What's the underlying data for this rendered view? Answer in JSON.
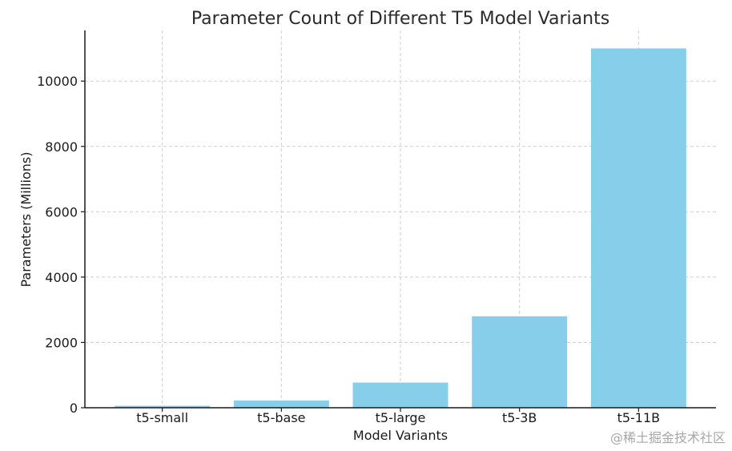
{
  "chart_data": {
    "type": "bar",
    "title": "Parameter Count of Different T5 Model Variants",
    "xlabel": "Model Variants",
    "ylabel": "Parameters (Millions)",
    "categories": [
      "t5-small",
      "t5-base",
      "t5-large",
      "t5-3B",
      "t5-11B"
    ],
    "values": [
      60,
      220,
      770,
      2800,
      11000
    ],
    "ylim": [
      0,
      11550
    ],
    "yticks": [
      0,
      2000,
      4000,
      6000,
      8000,
      10000
    ],
    "grid": true,
    "bar_color": "#87CEEB"
  },
  "watermark": "@稀土掘金技术社区"
}
